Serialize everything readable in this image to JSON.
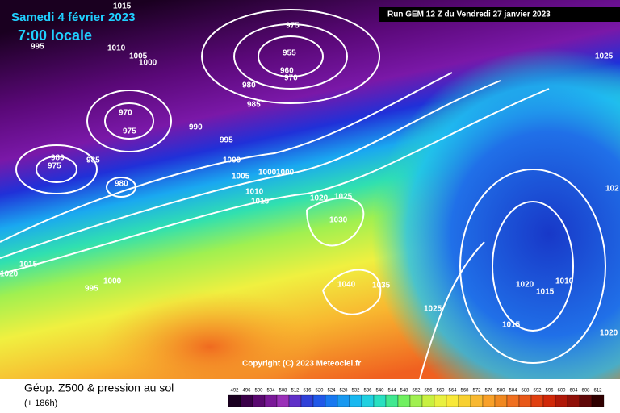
{
  "header": {
    "valid_date": "Samedi 4 février 2023",
    "local_time": "7:00 locale",
    "run": "Run GEM 12 Z du Vendredi 27 janvier 2023"
  },
  "isobar_labels": [
    "1015",
    "995",
    "1010",
    "1005",
    "1000",
    "975",
    "955",
    "960",
    "970",
    "980",
    "985",
    "970",
    "975",
    "990",
    "995",
    "980",
    "975",
    "985",
    "980",
    "1000",
    "1005",
    "1000",
    "1000",
    "1010",
    "1015",
    "1020",
    "1025",
    "1030",
    "1025",
    "102",
    "1015",
    "1020",
    "995",
    "1000",
    "1040",
    "1035",
    "1025",
    "1020",
    "1015",
    "1010",
    "1015",
    "1020"
  ],
  "copyright": "Copyright (C) 2023 Meteociel.fr",
  "footer": {
    "title": "Géop. Z500 & pression au sol",
    "lead": "(+ 186h)"
  },
  "scale": [
    "492",
    "496",
    "500",
    "504",
    "508",
    "512",
    "516",
    "520",
    "524",
    "528",
    "532",
    "536",
    "540",
    "544",
    "548",
    "552",
    "556",
    "560",
    "564",
    "568",
    "572",
    "576",
    "580",
    "584",
    "588",
    "592",
    "596",
    "600",
    "604",
    "608",
    "612"
  ]
}
